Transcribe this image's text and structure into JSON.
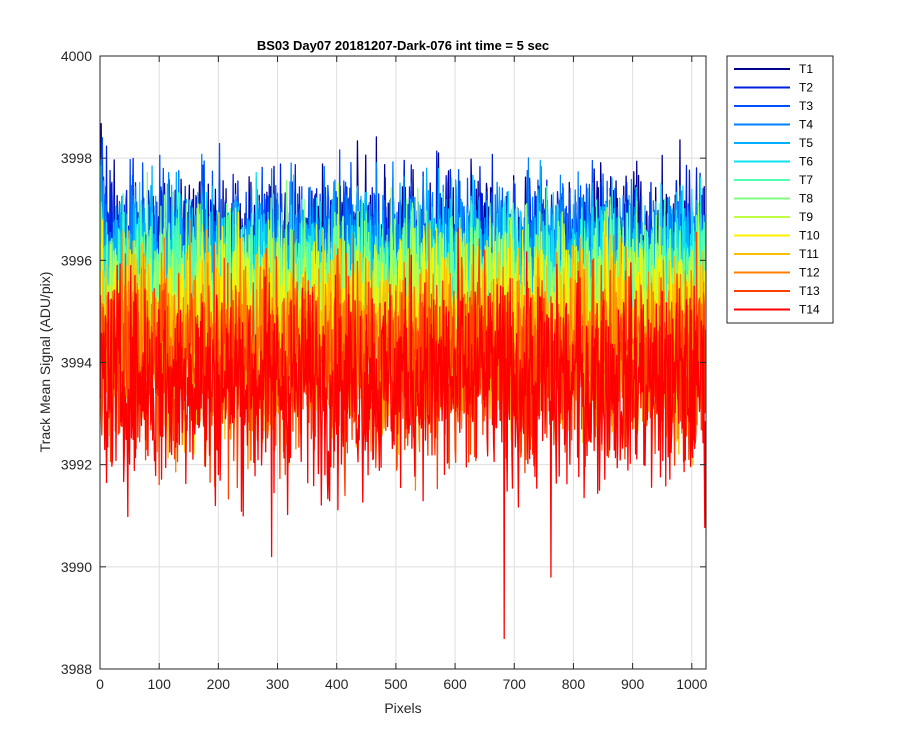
{
  "chart_data": {
    "type": "line",
    "title": "BS03 Day07 20181207-Dark-076 int time = 5 sec",
    "xlabel": "Pixels",
    "ylabel": "Track Mean Signal (ADU/pix)",
    "xlim": [
      0,
      1024
    ],
    "ylim": [
      3988,
      4000
    ],
    "xticks": [
      0,
      100,
      200,
      300,
      400,
      500,
      600,
      700,
      800,
      900,
      1000
    ],
    "yticks": [
      3988,
      3990,
      3992,
      3994,
      3996,
      3998,
      4000
    ],
    "grid": true,
    "legend_position": "outside-right",
    "series": [
      {
        "name": "T1",
        "color": "#00008f",
        "mean": 3996.3,
        "spread": 0.7
      },
      {
        "name": "T2",
        "color": "#0020df",
        "mean": 3996.2,
        "spread": 0.7
      },
      {
        "name": "T3",
        "color": "#0050ff",
        "mean": 3996.1,
        "spread": 0.7
      },
      {
        "name": "T4",
        "color": "#0080ff",
        "mean": 3996.0,
        "spread": 0.7
      },
      {
        "name": "T5",
        "color": "#00b0ff",
        "mean": 3995.9,
        "spread": 0.7
      },
      {
        "name": "T6",
        "color": "#10e0ef",
        "mean": 3995.7,
        "spread": 0.75
      },
      {
        "name": "T7",
        "color": "#50ffaf",
        "mean": 3995.5,
        "spread": 0.75
      },
      {
        "name": "T8",
        "color": "#80ff80",
        "mean": 3995.2,
        "spread": 0.8
      },
      {
        "name": "T9",
        "color": "#bfff40",
        "mean": 3995.0,
        "spread": 0.8
      },
      {
        "name": "T10",
        "color": "#ffef00",
        "mean": 3994.7,
        "spread": 0.85
      },
      {
        "name": "T11",
        "color": "#ffbf00",
        "mean": 3994.4,
        "spread": 0.9
      },
      {
        "name": "T12",
        "color": "#ff8000",
        "mean": 3994.2,
        "spread": 0.9
      },
      {
        "name": "T13",
        "color": "#ff4000",
        "mean": 3993.9,
        "spread": 0.95
      },
      {
        "name": "T14",
        "color": "#ff0000",
        "mean": 3993.6,
        "spread": 1.0
      }
    ],
    "annotations": [
      {
        "series": "T14",
        "x": 683,
        "y": 3988.6
      },
      {
        "series": "T14",
        "x": 762,
        "y": 3989.8
      },
      {
        "series": "T14",
        "x": 290,
        "y": 3990.2
      }
    ]
  }
}
